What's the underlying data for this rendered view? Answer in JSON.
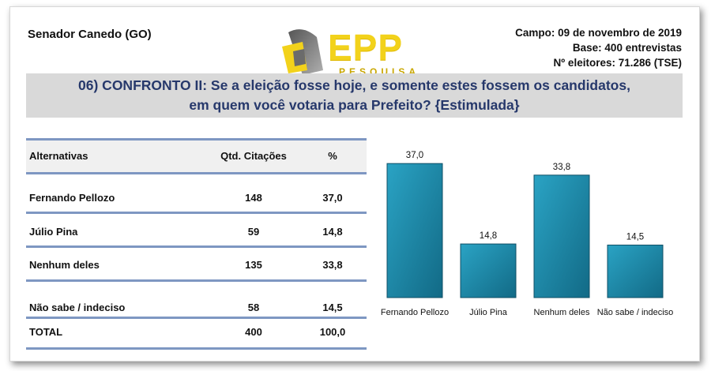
{
  "header": {
    "city": "Senador Canedo (GO)",
    "campo": "Campo: 09 de novembro de 2019",
    "base": "Base: 400 entrevistas",
    "eleitores": "Nº eleitores: 71.286  (TSE)",
    "logo_text": "EPP",
    "logo_sub": "PESQUISA"
  },
  "question": {
    "line1": "06) CONFRONTO II: Se a eleição fosse hoje, e somente estes fossem os candidatos,",
    "line2": "em quem você votaria para Prefeito? {Estimulada}"
  },
  "table": {
    "headers": [
      "Alternativas",
      "Qtd. Citações",
      "%"
    ],
    "rows": [
      {
        "name": "Fernando Pellozo",
        "qtd": "148",
        "pct": "37,0"
      },
      {
        "name": "Júlio Pina",
        "qtd": "59",
        "pct": "14,8"
      },
      {
        "name": "Nenhum deles",
        "qtd": "135",
        "pct": "33,8"
      },
      {
        "name": "Não sabe / indeciso",
        "qtd": "58",
        "pct": "14,5"
      }
    ],
    "total": {
      "name": "TOTAL",
      "qtd": "400",
      "pct": "100,0"
    }
  },
  "chart_data": {
    "type": "bar",
    "categories": [
      "Fernando Pellozo",
      "Júlio Pina",
      "Nenhum deles",
      "Não sabe / indeciso"
    ],
    "values": [
      37.0,
      14.8,
      33.8,
      14.5
    ],
    "value_labels": [
      "37,0",
      "14,8",
      "33,8",
      "14,5"
    ],
    "ylim": [
      0,
      40
    ],
    "grid": false,
    "bar_color": "#1f8fb0"
  }
}
